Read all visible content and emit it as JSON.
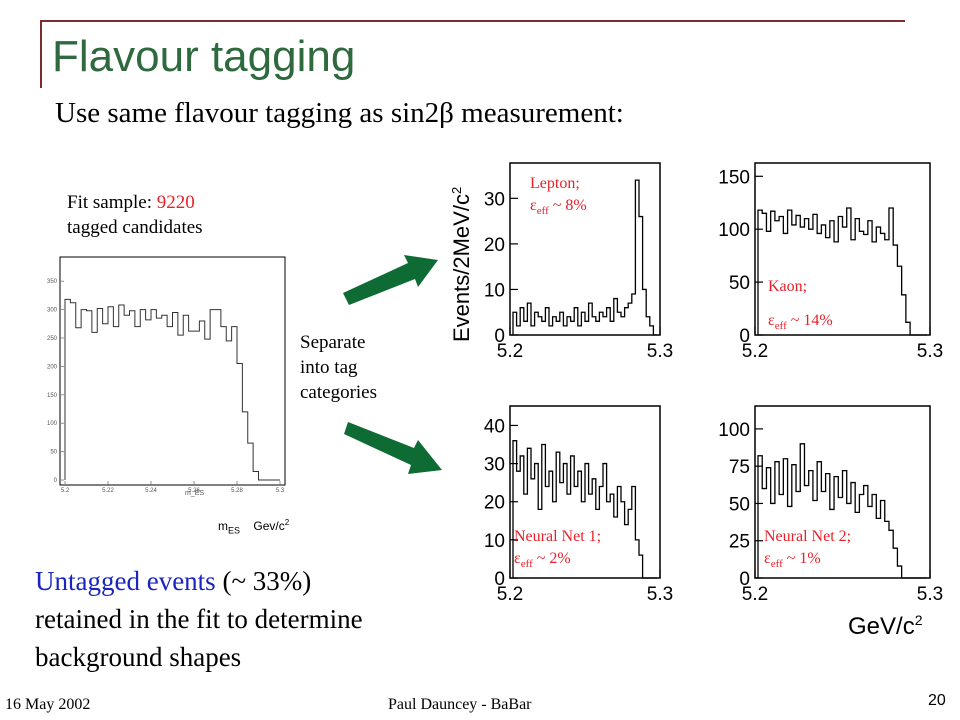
{
  "slide": {
    "title": "Flavour tagging",
    "subtitle": "Use same flavour tagging as sin2β measurement:",
    "fit_sample": {
      "prefix": "Fit sample: ",
      "count": "9220",
      "suffix": "tagged candidates"
    },
    "separate_label": [
      "Separate",
      "into tag",
      "categories"
    ],
    "untagged": {
      "blue_part": "Untagged events",
      "rest_first": " (~ 33%)",
      "line2": "retained in the fit to determine",
      "line3": "background shapes"
    },
    "footer": {
      "date": "16 May 2002",
      "author": "Paul Dauncey - BaBar",
      "page": "20"
    }
  },
  "mes_plot": {
    "axis_label_main": "m",
    "axis_label_sub": "ES",
    "axis_unit_main": "Gev/c",
    "axis_unit_sup": "2",
    "y_ticks": [
      "350",
      "300",
      "250",
      "200",
      "150",
      "100",
      "50",
      "0"
    ],
    "x_ticks": [
      "5.2",
      "5.22",
      "5.24",
      "5.26",
      "5.28",
      "5.3"
    ],
    "x_title": "m_ES"
  },
  "category_plots": {
    "y_axis_label": "Events/2MeV/c",
    "y_axis_sup": "2",
    "x_axis_label": "GeV/c",
    "x_axis_sup": "2",
    "x_ticks": [
      "5.2",
      "5.3"
    ],
    "lepton": {
      "name": "Lepton;",
      "eff": "~ 8%",
      "y_ticks": [
        "30",
        "20",
        "10",
        "0"
      ]
    },
    "kaon": {
      "name": "Kaon;",
      "eff": "~ 14%",
      "y_ticks": [
        "150",
        "100",
        "50",
        "0"
      ]
    },
    "nn1": {
      "name": "Neural Net 1;",
      "eff": "~ 2%",
      "y_ticks": [
        "40",
        "30",
        "20",
        "10",
        "0"
      ]
    },
    "nn2": {
      "name": "Neural Net 2;",
      "eff": "~ 1%",
      "y_ticks": [
        "100",
        "75",
        "50",
        "25",
        "0"
      ]
    },
    "eff_symbol": "ε",
    "eff_sub": "eff"
  },
  "colors": {
    "title": "#2e6a3d",
    "highlight_red": "#e8202a",
    "highlight_blue": "#1a24c0",
    "arrow": "#0f6b34",
    "frame": "#7b2d2d"
  }
}
